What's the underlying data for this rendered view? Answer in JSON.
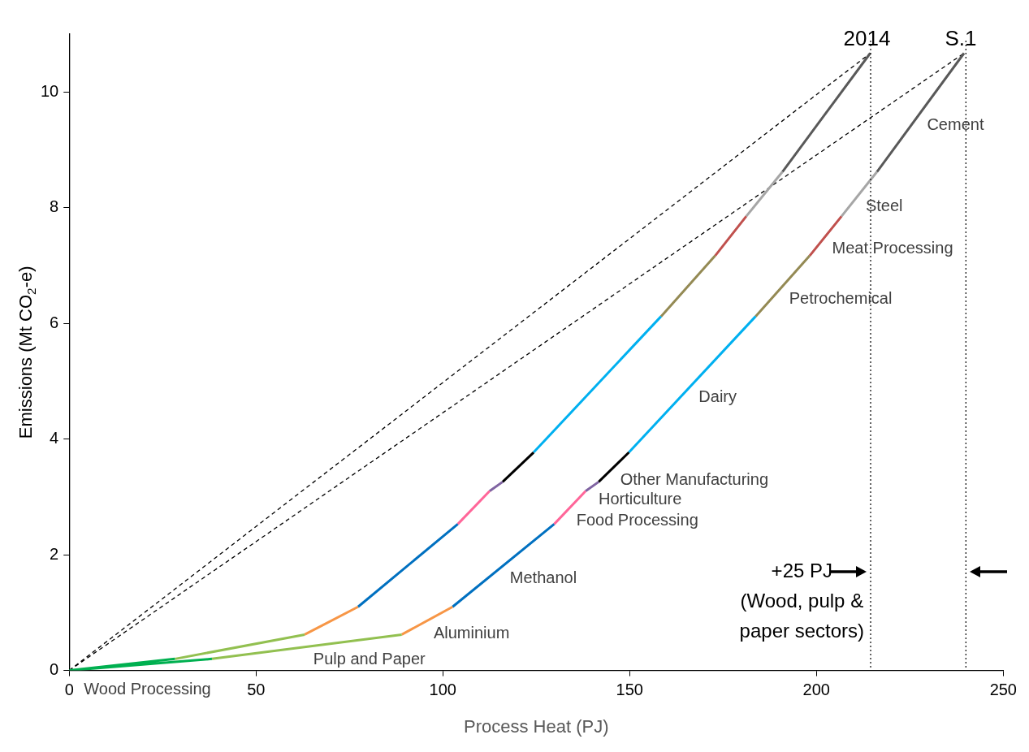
{
  "chart_data": {
    "type": "line",
    "xlabel": "Process Heat (PJ)",
    "ylabel": "Emissions (Mt CO$_{2}$-e)",
    "xlim": [
      0,
      250
    ],
    "xticks": [
      0,
      50,
      100,
      150,
      200,
      250
    ],
    "ylim": [
      0,
      11
    ],
    "yticks": [
      0,
      2,
      4,
      6,
      8,
      10
    ],
    "grid": false,
    "legend": false,
    "marker": "none",
    "line_style": "solid",
    "series": [
      {
        "name": "Wood Processing",
        "color": "#00b050",
        "x": [
          0,
          28.3,
          null,
          0,
          38.2
        ],
        "values": [
          0,
          0.2,
          null,
          0,
          0.2
        ]
      },
      {
        "name": "Pulp and Paper",
        "color": "#92c050",
        "x": [
          28.3,
          63,
          null,
          38.2,
          89
        ],
        "values": [
          0.2,
          0.62,
          null,
          0.2,
          0.62
        ]
      },
      {
        "name": "Aluminium",
        "color": "#f79646",
        "x": [
          63,
          77.3,
          null,
          89,
          102.6
        ],
        "values": [
          0.62,
          1.1,
          null,
          0.62,
          1.1
        ]
      },
      {
        "name": "Methanol",
        "color": "#0070c0",
        "x": [
          77.3,
          104,
          null,
          102.6,
          129.8
        ],
        "values": [
          1.1,
          2.53,
          null,
          1.1,
          2.53
        ]
      },
      {
        "name": "Food Processing",
        "color": "#ff6699",
        "x": [
          104,
          112.5,
          null,
          129.8,
          138.2
        ],
        "values": [
          2.53,
          3.1,
          null,
          2.53,
          3.1
        ]
      },
      {
        "name": "Horticulture",
        "color": "#8064a2",
        "x": [
          112.5,
          116,
          null,
          138.2,
          141.7
        ],
        "values": [
          3.1,
          3.26,
          null,
          3.1,
          3.26
        ]
      },
      {
        "name": "Other Manufacturing",
        "color": "#000000",
        "x": [
          116,
          124.3,
          null,
          141.7,
          149.8
        ],
        "values": [
          3.26,
          3.77,
          null,
          3.26,
          3.77
        ]
      },
      {
        "name": "Dairy",
        "color": "#00b0f0",
        "x": [
          124.3,
          158.4,
          null,
          149.8,
          183.7
        ],
        "values": [
          3.77,
          6.12,
          null,
          3.77,
          6.12
        ]
      },
      {
        "name": "Petrochemical",
        "color": "#948a54",
        "x": [
          158.4,
          172.9,
          null,
          183.7,
          198.2
        ],
        "values": [
          6.12,
          7.17,
          null,
          6.12,
          7.17
        ]
      },
      {
        "name": "Meat Processing",
        "color": "#c0504d",
        "x": [
          172.9,
          181.2,
          null,
          198.2,
          206.7
        ],
        "values": [
          7.17,
          7.85,
          null,
          7.17,
          7.85
        ]
      },
      {
        "name": "Steel",
        "color": "#a6a6a6",
        "x": [
          181.2,
          190.9,
          null,
          206.7,
          216.2
        ],
        "values": [
          7.85,
          8.62,
          null,
          7.85,
          8.62
        ]
      },
      {
        "name": "Cement",
        "color": "#595959",
        "x": [
          190.9,
          214.4,
          null,
          216.2,
          239.5
        ],
        "values": [
          8.62,
          10.67,
          null,
          8.62,
          10.67
        ]
      },
      {
        "color": "#000000",
        "line_style": "dashed",
        "x": [
          0,
          214.4
        ],
        "values": [
          0,
          10.67
        ]
      },
      {
        "color": "#000000",
        "line_style": "dashed",
        "x": [
          0,
          239.5
        ],
        "values": [
          0,
          10.67
        ]
      }
    ],
    "ref_lines": [
      {
        "axis": "x",
        "value": 214.5,
        "color": "#000000",
        "line_style": "dotted"
      },
      {
        "axis": "x",
        "value": 240,
        "color": "#000000",
        "line_style": "dotted"
      }
    ],
    "annotations": [
      {
        "text": "2014",
        "x": 214.4,
        "y": 10.67
      },
      {
        "text": "S.1",
        "x": 239.5,
        "y": 10.67
      },
      "+25 PJ\n(Wood, pulp &\npaper sectors)"
    ]
  }
}
